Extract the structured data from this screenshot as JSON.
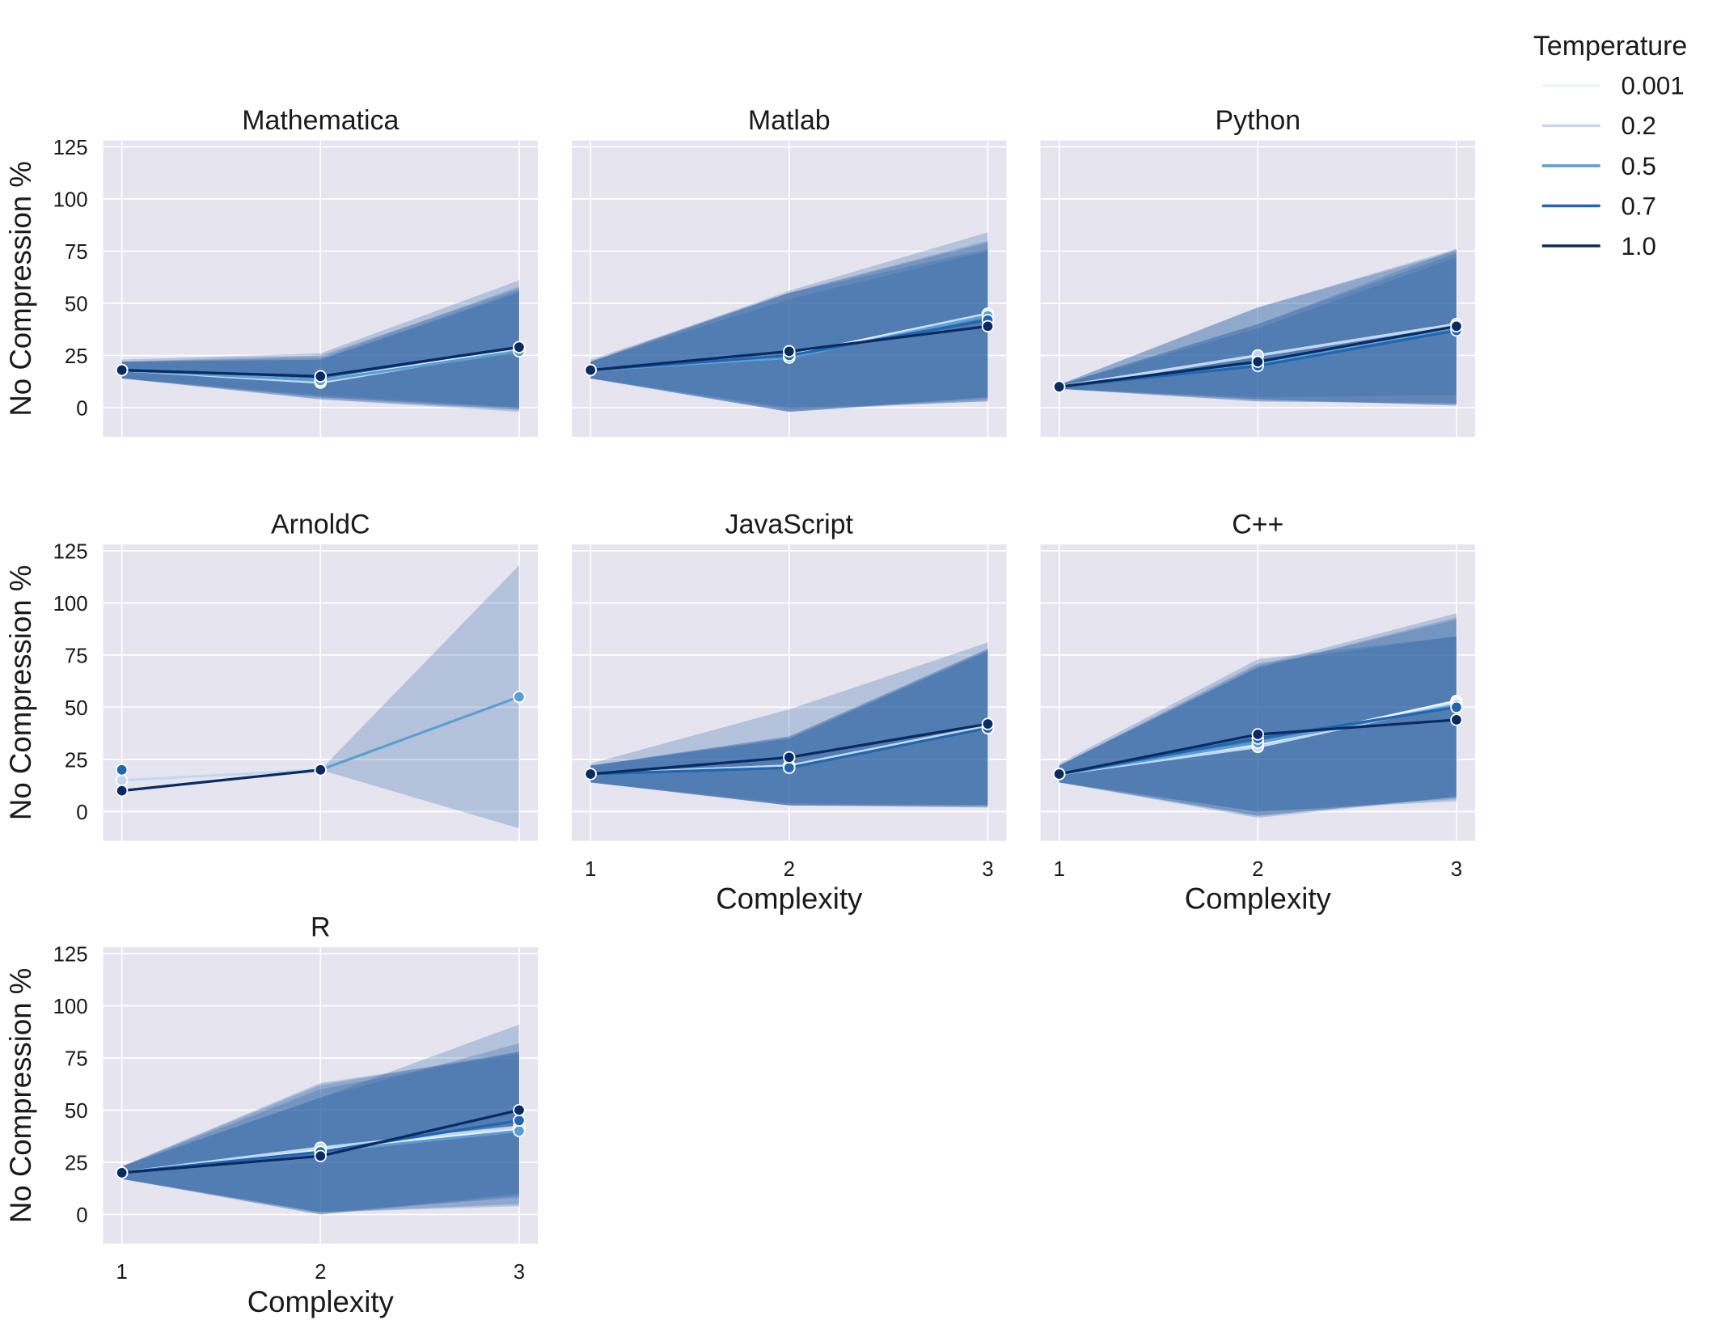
{
  "chart_data": {
    "type": "line",
    "figure": "faceted line chart with confidence bands",
    "legend": {
      "title": "Temperature",
      "position": "top-right",
      "entries": [
        {
          "label": "0.001",
          "color": "#eef3fb"
        },
        {
          "label": "0.2",
          "color": "#c3d8ee"
        },
        {
          "label": "0.5",
          "color": "#5b9fd2"
        },
        {
          "label": "0.7",
          "color": "#2166b0"
        },
        {
          "label": "1.0",
          "color": "#0a2b62"
        }
      ]
    },
    "x": [
      1,
      2,
      3
    ],
    "xlabel": "Complexity",
    "ylabel": "No Compression %",
    "ylim": [
      -14,
      128
    ],
    "yticks": [
      0,
      25,
      50,
      75,
      100,
      125
    ],
    "xticks": [
      1,
      2,
      3
    ],
    "colors": {
      "panel_bg": "#e5e4ef",
      "grid": "#ffffff",
      "band": "#2a62a2"
    },
    "panels": [
      {
        "title": "Mathematica",
        "show_ylabel": true,
        "show_xticks": false,
        "series": [
          {
            "name": "0.001",
            "values": [
              18,
              13,
              28
            ],
            "lower": [
              14,
              5,
              -1
            ],
            "upper": [
              22,
              24,
              58
            ]
          },
          {
            "name": "0.2",
            "values": [
              18,
              12,
              28
            ],
            "lower": [
              14,
              4,
              -1
            ],
            "upper": [
              22,
              23,
              56
            ]
          },
          {
            "name": "0.5",
            "values": [
              18,
              13,
              27
            ],
            "lower": [
              14,
              4,
              -2
            ],
            "upper": [
              22,
              23,
              55
            ]
          },
          {
            "name": "0.7",
            "values": [
              18,
              15,
              29
            ],
            "lower": [
              14,
              5,
              0
            ],
            "upper": [
              22,
              25,
              57
            ]
          },
          {
            "name": "1.0",
            "values": [
              18,
              15,
              29
            ],
            "lower": [
              14,
              6,
              0
            ],
            "upper": [
              23,
              26,
              61
            ]
          }
        ]
      },
      {
        "title": "Matlab",
        "show_ylabel": false,
        "show_xticks": false,
        "series": [
          {
            "name": "0.001",
            "values": [
              18,
              25,
              45
            ],
            "lower": [
              14,
              -2,
              5
            ],
            "upper": [
              22,
              56,
              84
            ]
          },
          {
            "name": "0.2",
            "values": [
              18,
              24,
              45
            ],
            "lower": [
              14,
              -2,
              5
            ],
            "upper": [
              22,
              55,
              80
            ]
          },
          {
            "name": "0.5",
            "values": [
              18,
              24,
              44
            ],
            "lower": [
              14,
              -2,
              4
            ],
            "upper": [
              22,
              55,
              79
            ]
          },
          {
            "name": "0.7",
            "values": [
              18,
              25,
              42
            ],
            "lower": [
              14,
              -1,
              3
            ],
            "upper": [
              22,
              52,
              75
            ]
          },
          {
            "name": "1.0",
            "values": [
              18,
              27,
              39
            ],
            "lower": [
              14,
              0,
              3
            ],
            "upper": [
              23,
              55,
              76
            ]
          }
        ]
      },
      {
        "title": "Python",
        "show_ylabel": false,
        "show_xticks": false,
        "series": [
          {
            "name": "0.001",
            "values": [
              10,
              25,
              40
            ],
            "lower": [
              9,
              3,
              2
            ],
            "upper": [
              11,
              48,
              76
            ]
          },
          {
            "name": "0.2",
            "values": [
              10,
              25,
              40
            ],
            "lower": [
              9,
              3,
              2
            ],
            "upper": [
              11,
              48,
              75
            ]
          },
          {
            "name": "0.5",
            "values": [
              10,
              21,
              38
            ],
            "lower": [
              9,
              4,
              1
            ],
            "upper": [
              11,
              40,
              74
            ]
          },
          {
            "name": "0.7",
            "values": [
              10,
              20,
              37
            ],
            "lower": [
              9,
              4,
              1
            ],
            "upper": [
              11,
              38,
              72
            ]
          },
          {
            "name": "1.0",
            "values": [
              10,
              22,
              39
            ],
            "lower": [
              9,
              5,
              6
            ],
            "upper": [
              11,
              40,
              76
            ]
          }
        ]
      },
      {
        "title": "ArnoldC",
        "show_ylabel": true,
        "show_xticks": false,
        "series": [
          {
            "name": "0.001",
            "values": [
              15,
              20,
              55
            ],
            "lower": [
              15,
              20,
              -8
            ],
            "upper": [
              15,
              20,
              118
            ]
          },
          {
            "name": "0.2",
            "values": [
              15,
              20,
              55
            ],
            "lower": [
              15,
              20,
              55
            ],
            "upper": [
              15,
              20,
              55
            ]
          },
          {
            "name": "0.5",
            "values": [
              null,
              20,
              55
            ],
            "lower": [
              null,
              20,
              55
            ],
            "upper": [
              null,
              20,
              55
            ]
          },
          {
            "name": "0.7",
            "values": [
              20,
              null,
              null
            ],
            "lower": [
              20,
              null,
              null
            ],
            "upper": [
              20,
              null,
              null
            ]
          },
          {
            "name": "1.0",
            "values": [
              10,
              20,
              null
            ],
            "lower": [
              10,
              20,
              null
            ],
            "upper": [
              10,
              20,
              null
            ]
          }
        ]
      },
      {
        "title": "JavaScript",
        "show_ylabel": false,
        "show_xticks": true,
        "series": [
          {
            "name": "0.001",
            "values": [
              18,
              22,
              40
            ],
            "lower": [
              14,
              3,
              2
            ],
            "upper": [
              22,
              36,
              78
            ]
          },
          {
            "name": "0.2",
            "values": [
              18,
              22,
              41
            ],
            "lower": [
              14,
              3,
              2
            ],
            "upper": [
              22,
              36,
              78
            ]
          },
          {
            "name": "0.5",
            "values": [
              18,
              21,
              40
            ],
            "lower": [
              14,
              3,
              3
            ],
            "upper": [
              22,
              35,
              77
            ]
          },
          {
            "name": "0.7",
            "values": [
              18,
              21,
              40
            ],
            "lower": [
              14,
              3,
              3
            ],
            "upper": [
              22,
              35,
              77
            ]
          },
          {
            "name": "1.0",
            "values": [
              18,
              26,
              42
            ],
            "lower": [
              14,
              4,
              3
            ],
            "upper": [
              23,
              49,
              81
            ]
          }
        ]
      },
      {
        "title": "C++",
        "show_ylabel": false,
        "show_xticks": true,
        "series": [
          {
            "name": "0.001",
            "values": [
              18,
              32,
              53
            ],
            "lower": [
              14,
              -3,
              7
            ],
            "upper": [
              22,
              70,
              95
            ]
          },
          {
            "name": "0.2",
            "values": [
              18,
              31,
              52
            ],
            "lower": [
              14,
              -2,
              7
            ],
            "upper": [
              22,
              69,
              93
            ]
          },
          {
            "name": "0.5",
            "values": [
              18,
              33,
              51
            ],
            "lower": [
              14,
              -2,
              7
            ],
            "upper": [
              22,
              69,
              92
            ]
          },
          {
            "name": "0.7",
            "values": [
              18,
              35,
              50
            ],
            "lower": [
              14,
              0,
              6
            ],
            "upper": [
              22,
              71,
              84
            ]
          },
          {
            "name": "1.0",
            "values": [
              18,
              37,
              44
            ],
            "lower": [
              14,
              0,
              5
            ],
            "upper": [
              23,
              73,
              84
            ]
          }
        ]
      },
      {
        "title": "R",
        "show_ylabel": true,
        "show_xticks": true,
        "series": [
          {
            "name": "0.001",
            "values": [
              20,
              31,
              41
            ],
            "lower": [
              17,
              1,
              5
            ],
            "upper": [
              23,
              62,
              78
            ]
          },
          {
            "name": "0.2",
            "values": [
              20,
              32,
              42
            ],
            "lower": [
              17,
              1,
              4
            ],
            "upper": [
              23,
              63,
              77
            ]
          },
          {
            "name": "0.5",
            "values": [
              20,
              30,
              40
            ],
            "lower": [
              17,
              1,
              8
            ],
            "upper": [
              23,
              60,
              78
            ]
          },
          {
            "name": "0.7",
            "values": [
              20,
              30,
              45
            ],
            "lower": [
              17,
              0,
              10
            ],
            "upper": [
              23,
              56,
              82
            ]
          },
          {
            "name": "1.0",
            "values": [
              20,
              28,
              50
            ],
            "lower": [
              17,
              0,
              9
            ],
            "upper": [
              23,
              56,
              91
            ]
          }
        ]
      }
    ]
  }
}
